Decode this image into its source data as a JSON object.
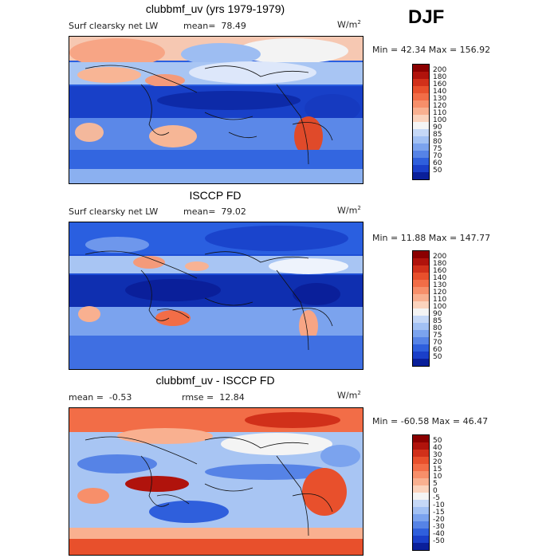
{
  "season": "DJF",
  "panels": [
    {
      "title": "clubbmf_uv (yrs 1979-1979)",
      "variable": "Surf clearsky net LW",
      "mean_label": "mean=",
      "mean": "78.49",
      "units": "W/m",
      "units_sup": "2",
      "range": "Min =  42.34 Max = 156.92"
    },
    {
      "title": "ISCCP FD",
      "variable": "Surf clearsky net LW",
      "mean_label": "mean=",
      "mean": "79.02",
      "units": "W/m",
      "units_sup": "2",
      "range": "Min =  11.88 Max = 147.77"
    },
    {
      "title": "clubbmf_uv - ISCCP FD",
      "mean_label": "mean =",
      "mean": "-0.53",
      "rmse_label": "rmse =",
      "rmse": "12.84",
      "units": "W/m",
      "units_sup": "2",
      "range": "Min = -60.58 Max =  46.47"
    }
  ],
  "colorbar_abs": {
    "levels": [
      "200",
      "180",
      "160",
      "140",
      "130",
      "120",
      "110",
      "100",
      "90",
      "85",
      "80",
      "75",
      "70",
      "60",
      "50"
    ],
    "colors": [
      "#8b0000",
      "#b0130c",
      "#d1301a",
      "#e8502c",
      "#f26d47",
      "#f78f6a",
      "#f9b090",
      "#fbd3bd",
      "#f4f4f4",
      "#c5d8f7",
      "#a2c1f4",
      "#7ba3ee",
      "#5683e6",
      "#2f5fdc",
      "#1a3fc9",
      "#0a1f9a"
    ]
  },
  "colorbar_diff": {
    "levels": [
      "50",
      "40",
      "30",
      "20",
      "15",
      "10",
      "5",
      "0",
      "-5",
      "-10",
      "-15",
      "-20",
      "-30",
      "-40",
      "-50"
    ],
    "colors": [
      "#8b0000",
      "#b0130c",
      "#d1301a",
      "#e8502c",
      "#f26d47",
      "#f78f6a",
      "#f9b090",
      "#fbd3bd",
      "#f4f4f4",
      "#c5d8f7",
      "#a2c1f4",
      "#7ba3ee",
      "#5683e6",
      "#2f5fdc",
      "#1a3fc9",
      "#0a1f9a"
    ]
  }
}
